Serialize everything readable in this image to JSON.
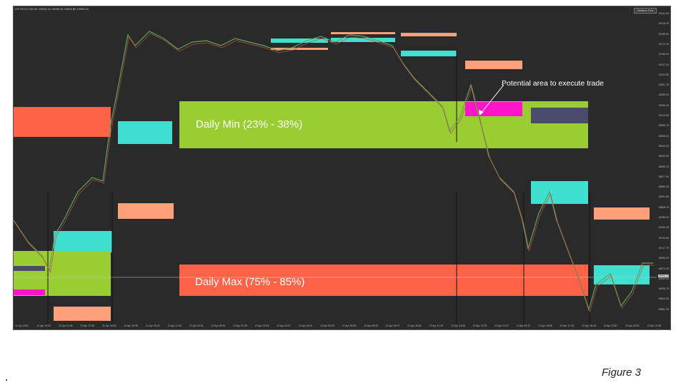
{
  "chart": {
    "header_text": "US TECH 100,M1 19003.14 19058.45 19004.86 19055.31",
    "overlay_button": "Daniken Fine",
    "zones": {
      "daily_min_label": "Daily Min (23% - 38%)",
      "daily_max_label": "Daily Max (75% - 85%)"
    },
    "callout_label": "Potential area to execute trade",
    "price_ticks": [
      "19241.00",
      "19218.25",
      "19195.50",
      "19172.75",
      "19150.00",
      "19127.25",
      "19104.50",
      "19081.75",
      "19059.00",
      "19036.25",
      "19013.50",
      "18990.75",
      "18968.00",
      "18945.25",
      "18922.50",
      "18899.75",
      "18877.00",
      "18854.25",
      "18831.50",
      "18808.75",
      "18786.00",
      "18763.25",
      "18740.50",
      "18717.75",
      "18695.00",
      "18672.25",
      "18649.50",
      "18626.75",
      "18604.00",
      "18581.25"
    ],
    "current_price_tag": "18996.33",
    "time_ticks": [
      "11 Apr 2024",
      "11 Apr 14:02",
      "11 Apr 14:46",
      "11 Apr 17:36",
      "11 Apr 18:04",
      "11 Apr 19:36",
      "11 Apr 20:22",
      "11 Apr 21:36",
      "11 Apr 23:01",
      "12 Apr 00:45",
      "12 Apr 01:36",
      "12 Apr 02:43",
      "12 Apr 03:47",
      "12 Apr 04:01",
      "12 Apr 05:33",
      "12 Apr 06:59",
      "12 Apr 08:03",
      "12 Apr 09:07",
      "12 Apr 10:51",
      "12 Apr 11:30",
      "12 Apr 13:08",
      "12 Apr 13:23",
      "12 Apr 14:27",
      "12 Apr 15:31",
      "12 Apr 16:35",
      "12 Apr 17:39",
      "12 Apr 18:43",
      "12 Apr 19:47",
      "12 Apr 20:51",
      "12 Apr 21:55"
    ],
    "colors": {
      "background": "#2a2a2a",
      "green_zone": "#9acd32",
      "red_zone": "#ff6347",
      "cyan_zone": "#40e0d0",
      "salmon_zone": "#ffa07a",
      "magenta_zone": "#ff14c8",
      "slate_zone": "#4a4a6a"
    }
  },
  "caption": "Figure 3"
}
